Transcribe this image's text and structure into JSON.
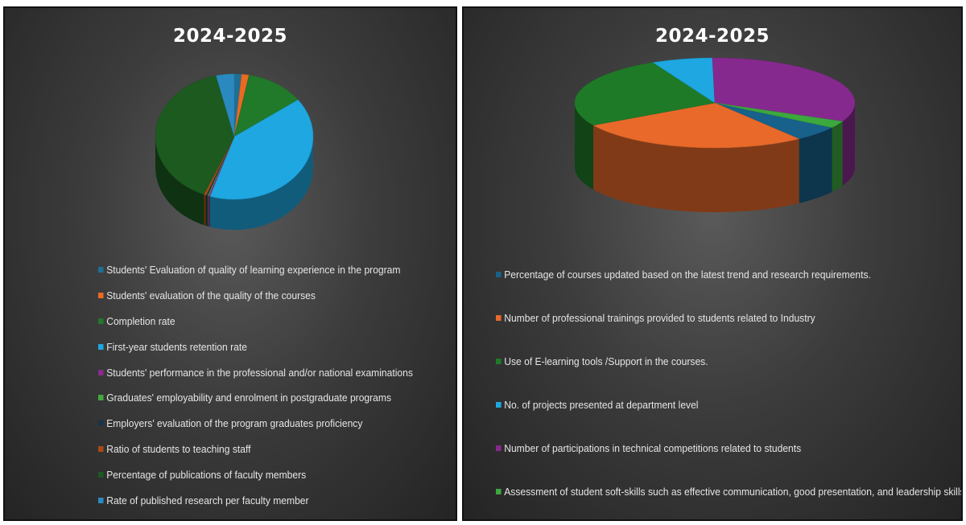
{
  "chart_data": [
    {
      "type": "pie",
      "title": "2024-2025",
      "categories": [
        "Students' Evaluation of quality of learning experience in the program",
        "Students' evaluation of the quality of the courses",
        "Completion rate",
        "First-year students retention rate",
        "Students' performance in the professional and/or national examinations",
        "Graduates' employability and enrolment in postgraduate programs",
        "Employers' evaluation of the program graduates proficiency",
        "Ratio of students to teaching staff",
        "Percentage of publications of faculty members",
        "Rate of published research per faculty member"
      ],
      "values": [
        1.5,
        1.5,
        12,
        40,
        0.3,
        0.2,
        0.3,
        0.5,
        40,
        3.7
      ],
      "colors": [
        "#1f6f95",
        "#ea6a22",
        "#21792a",
        "#1ea7e0",
        "#8a2a8f",
        "#45a83c",
        "#17344a",
        "#a84a15",
        "#1c5a20",
        "#2a8ac0"
      ],
      "legend": "bottom"
    },
    {
      "type": "pie",
      "title": "2024-2025",
      "categories": [
        "Percentage of courses updated based on the latest trend and research requirements.",
        "Number of professional trainings provided to students related to Industry",
        "Use of E-learning tools /Support in the courses.",
        "No. of projects presented at department level",
        "Number of participations in technical competitions related to students",
        "Assessment of student soft-skills such as effective communication, good presentation, and leadership skills"
      ],
      "values": [
        5.5,
        27,
        26,
        7,
        32,
        2.5
      ],
      "colors": [
        "#17618a",
        "#e8692a",
        "#1f7a28",
        "#1ea7e0",
        "#86298f",
        "#3ca83e"
      ],
      "legend": "bottom"
    }
  ]
}
